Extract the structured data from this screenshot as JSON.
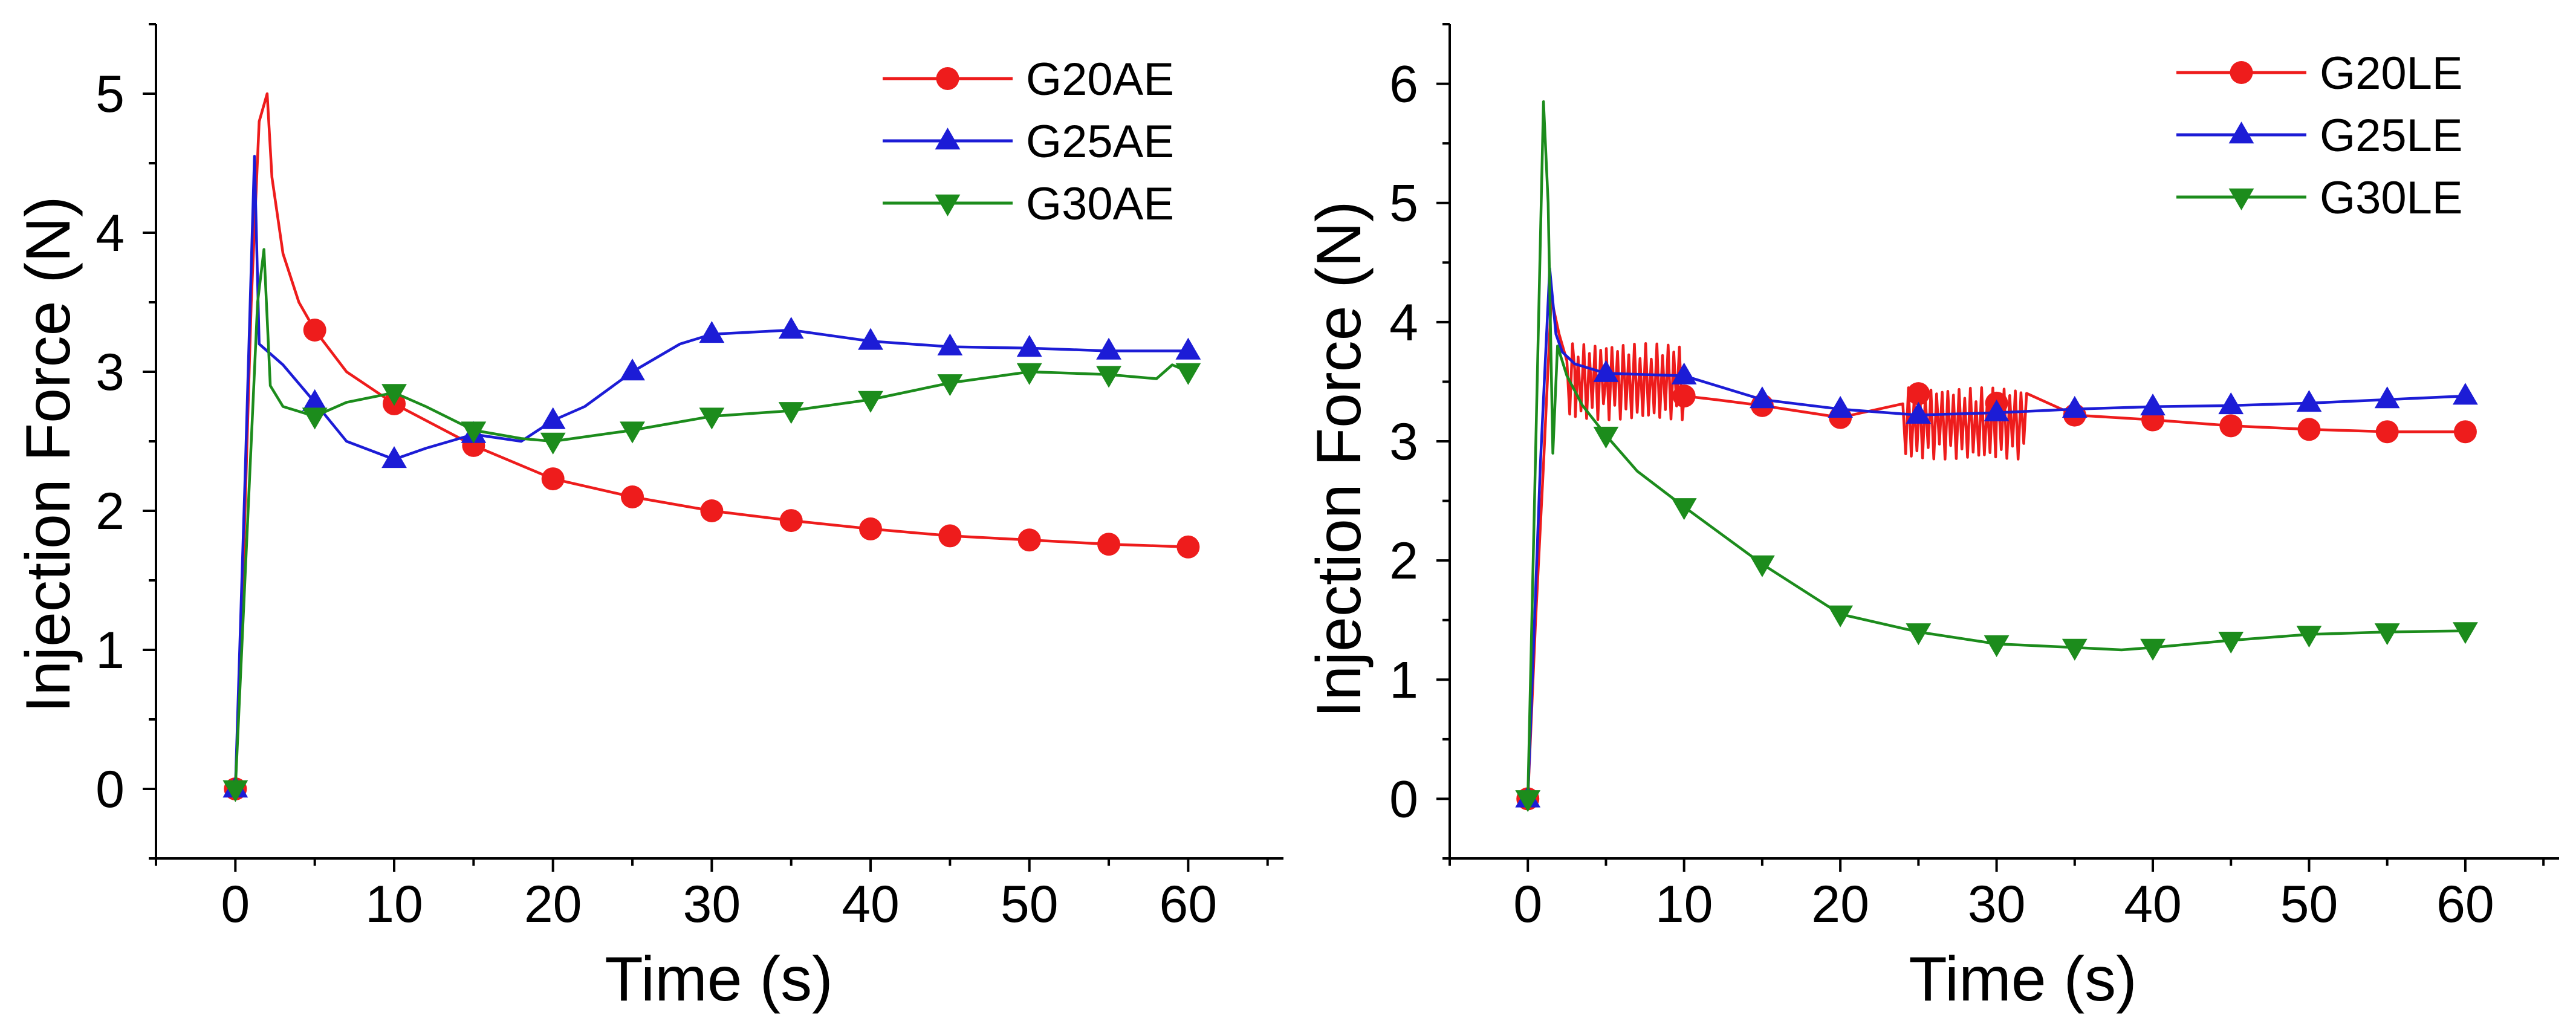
{
  "chart_data": [
    {
      "type": "line",
      "title": "",
      "xlabel": "Time (s)",
      "ylabel": "Injection Force (N)",
      "xlim": [
        -5,
        66
      ],
      "ylim": [
        -0.5,
        5.5
      ],
      "xticks": [
        0,
        10,
        20,
        30,
        40,
        50,
        60
      ],
      "yticks": [
        0,
        1,
        2,
        3,
        4,
        5
      ],
      "legend_position": "top-right",
      "grid": false,
      "series": [
        {
          "name": "G20AE",
          "color": "#ee1c1c",
          "marker": "circle",
          "x": [
            0,
            0.5,
            1.0,
            1.5,
            2.0,
            2.3,
            3,
            4,
            5,
            7,
            10,
            12,
            15,
            20,
            25,
            30,
            35,
            40,
            45,
            50,
            55,
            60
          ],
          "y": [
            0,
            1.6,
            3.5,
            4.8,
            5.0,
            4.4,
            3.85,
            3.5,
            3.3,
            3.0,
            2.77,
            2.65,
            2.47,
            2.23,
            2.1,
            2.0,
            1.93,
            1.87,
            1.82,
            1.79,
            1.76,
            1.74
          ],
          "markers_x": [
            0,
            5,
            10,
            15,
            20,
            25,
            30,
            35,
            40,
            45,
            50,
            55,
            60
          ],
          "markers_y": [
            0,
            3.3,
            2.77,
            2.47,
            2.23,
            2.1,
            2.0,
            1.93,
            1.87,
            1.82,
            1.79,
            1.76,
            1.74
          ]
        },
        {
          "name": "G25AE",
          "color": "#1c1cd6",
          "marker": "triangle-up",
          "x": [
            0,
            0.6,
            1.2,
            1.5,
            2,
            3,
            5,
            7,
            10,
            12,
            15,
            18,
            20,
            22,
            25,
            28,
            30,
            35,
            40,
            45,
            50,
            55,
            60
          ],
          "y": [
            0,
            2.2,
            4.55,
            3.2,
            3.15,
            3.05,
            2.78,
            2.5,
            2.37,
            2.45,
            2.55,
            2.5,
            2.65,
            2.75,
            3.0,
            3.2,
            3.27,
            3.3,
            3.22,
            3.18,
            3.17,
            3.15,
            3.15
          ],
          "markers_x": [
            0,
            5,
            10,
            15,
            20,
            25,
            30,
            35,
            40,
            45,
            50,
            55,
            60
          ],
          "markers_y": [
            0,
            2.78,
            2.37,
            2.55,
            2.65,
            3.0,
            3.27,
            3.3,
            3.22,
            3.18,
            3.17,
            3.15,
            3.15
          ]
        },
        {
          "name": "G30AE",
          "color": "#1c8c1c",
          "marker": "triangle-down",
          "x": [
            0,
            0.8,
            1.4,
            1.8,
            2.2,
            3,
            5,
            7,
            10,
            12,
            15,
            18,
            20,
            25,
            30,
            35,
            40,
            45,
            50,
            55,
            58,
            59,
            60
          ],
          "y": [
            0,
            2.0,
            3.5,
            3.88,
            2.9,
            2.75,
            2.68,
            2.78,
            2.85,
            2.75,
            2.58,
            2.52,
            2.5,
            2.58,
            2.68,
            2.72,
            2.8,
            2.92,
            3.0,
            2.98,
            2.95,
            3.05,
            3.0
          ],
          "markers_x": [
            0,
            5,
            10,
            15,
            20,
            25,
            30,
            35,
            40,
            45,
            50,
            55,
            60
          ],
          "markers_y": [
            0,
            2.68,
            2.85,
            2.58,
            2.5,
            2.58,
            2.68,
            2.72,
            2.8,
            2.92,
            3.0,
            2.98,
            3.0
          ]
        }
      ]
    },
    {
      "type": "line",
      "title": "",
      "xlabel": "Time (s)",
      "ylabel": "Injection Force (N)",
      "xlim": [
        -5,
        66
      ],
      "ylim": [
        -0.5,
        6.5
      ],
      "xticks": [
        0,
        10,
        20,
        30,
        40,
        50,
        60
      ],
      "yticks": [
        0,
        1,
        2,
        3,
        4,
        5,
        6
      ],
      "legend_position": "top-right",
      "grid": false,
      "series": [
        {
          "name": "G20LE",
          "color": "#ee1c1c",
          "marker": "circle",
          "x": [
            0,
            0.5,
            1.0,
            1.5,
            2,
            3,
            5,
            8,
            10,
            12,
            15,
            20,
            25,
            30,
            35,
            40,
            45,
            50,
            55,
            60
          ],
          "y": [
            0,
            1.5,
            2.8,
            4.2,
            3.9,
            3.6,
            3.55,
            3.45,
            3.38,
            3.35,
            3.3,
            3.2,
            3.18,
            3.22,
            3.22,
            3.18,
            3.13,
            3.1,
            3.08,
            3.08
          ],
          "markers_x": [
            0,
            10,
            15,
            20,
            25,
            30,
            35,
            40,
            45,
            50,
            55,
            60
          ],
          "markers_y": [
            0,
            3.38,
            3.3,
            3.2,
            3.4,
            3.32,
            3.22,
            3.18,
            3.13,
            3.1,
            3.08,
            3.08
          ],
          "oscillations": [
            {
              "x_start": 2.5,
              "x_end": 10,
              "center": 3.5,
              "amplitude": 0.32
            },
            {
              "x_start": 24,
              "x_end": 32,
              "center": 3.15,
              "amplitude": 0.3
            }
          ]
        },
        {
          "name": "G25LE",
          "color": "#1c1cd6",
          "marker": "triangle-up",
          "x": [
            0,
            0.8,
            1.4,
            1.8,
            2.2,
            3,
            5,
            10,
            15,
            20,
            25,
            30,
            35,
            40,
            45,
            50,
            55,
            60
          ],
          "y": [
            0,
            2.8,
            4.45,
            3.9,
            3.75,
            3.65,
            3.57,
            3.55,
            3.35,
            3.27,
            3.22,
            3.24,
            3.27,
            3.29,
            3.3,
            3.32,
            3.35,
            3.38
          ],
          "markers_x": [
            0,
            5,
            10,
            15,
            20,
            25,
            30,
            35,
            40,
            45,
            50,
            55,
            60
          ],
          "markers_y": [
            0,
            3.57,
            3.55,
            3.35,
            3.27,
            3.22,
            3.24,
            3.27,
            3.29,
            3.3,
            3.32,
            3.35,
            3.38
          ]
        },
        {
          "name": "G30LE",
          "color": "#1c8c1c",
          "marker": "triangle-down",
          "x": [
            0,
            0.6,
            1.0,
            1.3,
            1.6,
            1.9,
            2.5,
            3.5,
            5,
            7,
            10,
            15,
            20,
            25,
            30,
            35,
            38,
            40,
            45,
            50,
            55,
            60
          ],
          "y": [
            0,
            3.5,
            5.85,
            5.0,
            2.9,
            3.8,
            3.55,
            3.3,
            3.05,
            2.75,
            2.45,
            1.97,
            1.55,
            1.4,
            1.3,
            1.27,
            1.25,
            1.27,
            1.33,
            1.38,
            1.4,
            1.41
          ],
          "markers_x": [
            0,
            5,
            10,
            15,
            20,
            25,
            30,
            35,
            40,
            45,
            50,
            55,
            60
          ],
          "markers_y": [
            0,
            3.05,
            2.45,
            1.97,
            1.55,
            1.4,
            1.3,
            1.27,
            1.27,
            1.33,
            1.38,
            1.4,
            1.41
          ]
        }
      ]
    }
  ]
}
